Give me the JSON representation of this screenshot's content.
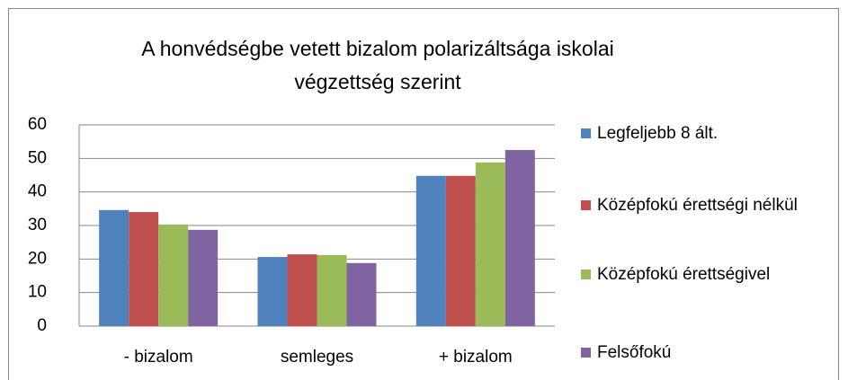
{
  "chart_data": {
    "type": "bar",
    "title": "A honvédségbe vetett bizalom polarizáltsága iskolai végzettség szerint",
    "categories": [
      "- bizalom",
      "semleges",
      "+ bizalom"
    ],
    "series": [
      {
        "name": "Legfeljebb 8 ált.",
        "color": "#4f81bd",
        "values": [
          34.6,
          20.6,
          44.8
        ]
      },
      {
        "name": "Középfokú érettségi nélkül",
        "color": "#c0504d",
        "values": [
          34,
          21.4,
          44.8
        ]
      },
      {
        "name": "Középfokú érettségivel",
        "color": "#9bbb59",
        "values": [
          30.3,
          21.2,
          48.8
        ]
      },
      {
        "name": "Felsőfokú",
        "color": "#8064a2",
        "values": [
          28.7,
          18.8,
          52.5
        ]
      }
    ],
    "ylim": [
      0,
      60
    ],
    "yticks": [
      0,
      10,
      20,
      30,
      40,
      50,
      60
    ],
    "grid": true,
    "legend": "right"
  }
}
